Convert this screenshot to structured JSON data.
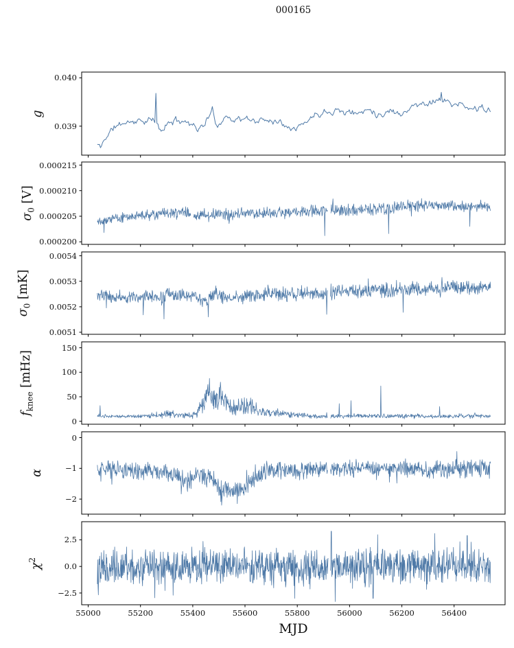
{
  "title": "000165",
  "xlabel": "MJD",
  "accent_color": "#4e79a7",
  "chart_data": {
    "type": "line",
    "title": "000165",
    "xlabel": "MJD",
    "legend": null,
    "grid": false,
    "xlim": [
      54975,
      56595
    ],
    "x_start": 55035,
    "x_end": 56540,
    "line_color": "#4e79a7",
    "xticks": [
      {
        "v": 55000,
        "label": "55000"
      },
      {
        "v": 55200,
        "label": "55200"
      },
      {
        "v": 55400,
        "label": "55400"
      },
      {
        "v": 55600,
        "label": "55600"
      },
      {
        "v": 55800,
        "label": "55800"
      },
      {
        "v": 56000,
        "label": "56000"
      },
      {
        "v": 56200,
        "label": "56200"
      },
      {
        "v": 56400,
        "label": "56400"
      }
    ],
    "panels": [
      {
        "name": "g",
        "ylabel_text": "g",
        "ylabel_segments": [
          {
            "t": "g",
            "i": true
          }
        ],
        "ylim": [
          0.0384,
          0.04012
        ],
        "yticks": [
          {
            "v": 0.039,
            "label": "0.039"
          },
          {
            "v": 0.04,
            "label": "0.040"
          }
        ],
        "style": {
          "step": 4,
          "noise": 5.5e-05,
          "smooth": 0.5,
          "lw": 1.0,
          "band": false
        },
        "keys": [
          [
            55035,
            0.03862
          ],
          [
            55048,
            0.03856
          ],
          [
            55070,
            0.0388
          ],
          [
            55100,
            0.03898
          ],
          [
            55140,
            0.03908
          ],
          [
            55200,
            0.03911
          ],
          [
            55250,
            0.03912
          ],
          [
            55280,
            0.0389
          ],
          [
            55310,
            0.03908
          ],
          [
            55355,
            0.03913
          ],
          [
            55395,
            0.03906
          ],
          [
            55425,
            0.03893
          ],
          [
            55450,
            0.03908
          ],
          [
            55475,
            0.03932
          ],
          [
            55495,
            0.03898
          ],
          [
            55520,
            0.0392
          ],
          [
            55555,
            0.03915
          ],
          [
            55600,
            0.03914
          ],
          [
            55650,
            0.03911
          ],
          [
            55700,
            0.03914
          ],
          [
            55745,
            0.03906
          ],
          [
            55790,
            0.03898
          ],
          [
            55825,
            0.03904
          ],
          [
            55860,
            0.03922
          ],
          [
            55900,
            0.0393
          ],
          [
            55945,
            0.03934
          ],
          [
            55990,
            0.03929
          ],
          [
            56035,
            0.03926
          ],
          [
            56075,
            0.03938
          ],
          [
            56115,
            0.03922
          ],
          [
            56155,
            0.03933
          ],
          [
            56195,
            0.03926
          ],
          [
            56245,
            0.03942
          ],
          [
            56295,
            0.03948
          ],
          [
            56345,
            0.03956
          ],
          [
            56385,
            0.03947
          ],
          [
            56425,
            0.03943
          ],
          [
            56465,
            0.03934
          ],
          [
            56505,
            0.0394
          ],
          [
            56540,
            0.03927
          ]
        ],
        "spikes": [
          [
            55258,
            0.03968
          ],
          [
            56352,
            0.0397
          ]
        ],
        "gaps": []
      },
      {
        "name": "sigma0-v",
        "ylabel_text": "sigma_0 [V]",
        "ylabel_segments": [
          {
            "t": "σ",
            "i": true
          },
          {
            "t": "0",
            "sub": true
          },
          {
            "t": " [V]"
          }
        ],
        "ylim": [
          0.0001995,
          0.0002156
        ],
        "yticks": [
          {
            "v": 0.0002,
            "label": "0.000200"
          },
          {
            "v": 0.000205,
            "label": "0.000205"
          },
          {
            "v": 0.00021,
            "label": "0.000210"
          },
          {
            "v": 0.000215,
            "label": "0.000215"
          }
        ],
        "style": {
          "step": 1.5,
          "lw": 0.8,
          "band": true
        },
        "keys": [
          [
            55035,
            0.0002042,
            9e-07
          ],
          [
            55100,
            0.0002046,
            1.1e-06
          ],
          [
            55200,
            0.0002051,
            1.2e-06
          ],
          [
            55300,
            0.0002055,
            1.3e-06
          ],
          [
            55391,
            0.0002058,
            1.3e-06
          ],
          [
            55402,
            0.0002049,
            1.3e-06
          ],
          [
            55500,
            0.0002053,
            1.3e-06
          ],
          [
            55600,
            0.0002055,
            1.3e-06
          ],
          [
            55700,
            0.0002056,
            1.3e-06
          ],
          [
            55800,
            0.0002058,
            1.3e-06
          ],
          [
            55910,
            0.0002061,
            1.4e-06
          ],
          [
            56000,
            0.0002062,
            1.4e-06
          ],
          [
            56100,
            0.0002064,
            1.4e-06
          ],
          [
            56200,
            0.0002068,
            1.4e-06
          ],
          [
            56290,
            0.0002073,
            1.4e-06
          ],
          [
            56360,
            0.0002071,
            1.3e-06
          ],
          [
            56450,
            0.0002069,
            1.3e-06
          ],
          [
            56540,
            0.0002069,
            1.2e-06
          ]
        ],
        "spikes": [
          [
            55060,
            0.0002018
          ],
          [
            55905,
            0.0002012
          ],
          [
            56150,
            0.0002016
          ],
          [
            56460,
            0.000203
          ]
        ],
        "gaps": [
          [
            55393,
            55401
          ],
          [
            55916,
            55926
          ]
        ]
      },
      {
        "name": "sigma0-mk",
        "ylabel_text": "sigma_0 [mK]",
        "ylabel_segments": [
          {
            "t": "σ",
            "i": true
          },
          {
            "t": "0",
            "sub": true
          },
          {
            "t": " [mK]"
          }
        ],
        "ylim": [
          0.005092,
          0.005415
        ],
        "yticks": [
          {
            "v": 0.0051,
            "label": "0.0051"
          },
          {
            "v": 0.0052,
            "label": "0.0052"
          },
          {
            "v": 0.0053,
            "label": "0.0053"
          },
          {
            "v": 0.0054,
            "label": "0.0054"
          }
        ],
        "style": {
          "step": 1.5,
          "lw": 0.8,
          "band": true
        },
        "keys": [
          [
            55035,
            0.005245,
            3e-05
          ],
          [
            55150,
            0.005235,
            3e-05
          ],
          [
            55250,
            0.00524,
            3e-05
          ],
          [
            55287,
            0.005228,
            3.6e-05
          ],
          [
            55302,
            0.005262,
            2.4e-05
          ],
          [
            55330,
            0.005246,
            3e-05
          ],
          [
            55420,
            0.00524,
            3e-05
          ],
          [
            55458,
            0.005218,
            3.6e-05
          ],
          [
            55482,
            0.005258,
            2.8e-05
          ],
          [
            55520,
            0.005232,
            3e-05
          ],
          [
            55600,
            0.005242,
            3.4e-05
          ],
          [
            55700,
            0.00525,
            3.4e-05
          ],
          [
            55800,
            0.005252,
            3.4e-05
          ],
          [
            55910,
            0.005256,
            3.4e-05
          ],
          [
            56000,
            0.00526,
            3.4e-05
          ],
          [
            56100,
            0.005266,
            3.4e-05
          ],
          [
            56155,
            0.00526,
            3.8e-05
          ],
          [
            56210,
            0.00527,
            3.4e-05
          ],
          [
            56300,
            0.005272,
            3.6e-05
          ],
          [
            56400,
            0.005276,
            3.4e-05
          ],
          [
            56470,
            0.00527,
            3.4e-05
          ],
          [
            56540,
            0.005278,
            3e-05
          ]
        ],
        "spikes": [
          [
            55210,
            0.005168
          ],
          [
            55290,
            0.005152
          ],
          [
            55460,
            0.00516
          ],
          [
            55912,
            0.00517
          ],
          [
            56205,
            0.005178
          ]
        ],
        "gaps": [
          [
            55916,
            55926
          ]
        ]
      },
      {
        "name": "fknee",
        "ylabel_text": "f_knee [mHz]",
        "ylabel_segments": [
          {
            "t": "f",
            "i": true
          },
          {
            "t": "knee",
            "sub": true
          },
          {
            "t": " [mHz]"
          }
        ],
        "ylim": [
          -6,
          162
        ],
        "yticks": [
          {
            "v": 0,
            "label": "0"
          },
          {
            "v": 50,
            "label": "50"
          },
          {
            "v": 100,
            "label": "100"
          },
          {
            "v": 150,
            "label": "150"
          }
        ],
        "style": {
          "step": 1.5,
          "lw": 0.8,
          "band": true,
          "clampMin": 3
        },
        "keys": [
          [
            55035,
            10,
            5
          ],
          [
            55100,
            10,
            4
          ],
          [
            55200,
            10,
            4
          ],
          [
            55290,
            14,
            8
          ],
          [
            55320,
            16,
            10
          ],
          [
            55350,
            12,
            6
          ],
          [
            55400,
            12,
            8
          ],
          [
            55430,
            25,
            18
          ],
          [
            55460,
            55,
            40
          ],
          [
            55480,
            55,
            42
          ],
          [
            55500,
            45,
            32
          ],
          [
            55530,
            35,
            25
          ],
          [
            55560,
            28,
            18
          ],
          [
            55600,
            30,
            24
          ],
          [
            55620,
            35,
            25
          ],
          [
            55650,
            20,
            12
          ],
          [
            55700,
            18,
            10
          ],
          [
            55750,
            16,
            9
          ],
          [
            55800,
            14,
            8
          ],
          [
            55850,
            10,
            5
          ],
          [
            55900,
            10,
            5
          ],
          [
            56000,
            11,
            5
          ],
          [
            56100,
            11,
            5
          ],
          [
            56200,
            11,
            5
          ],
          [
            56300,
            10,
            4
          ],
          [
            56400,
            10,
            5
          ],
          [
            56470,
            11,
            6
          ],
          [
            56540,
            10,
            4
          ]
        ],
        "spikes": [
          [
            55045,
            32
          ],
          [
            55960,
            36
          ],
          [
            56005,
            42
          ],
          [
            56120,
            72
          ],
          [
            56345,
            30
          ]
        ],
        "gaps": [
          [
            55916,
            55926
          ]
        ]
      },
      {
        "name": "alpha",
        "ylabel_text": "alpha",
        "ylabel_segments": [
          {
            "t": "α",
            "i": true
          }
        ],
        "ylim": [
          -2.49,
          0.19
        ],
        "yticks": [
          {
            "v": -2,
            "label": "−2"
          },
          {
            "v": -1,
            "label": "−1"
          },
          {
            "v": 0,
            "label": "0"
          }
        ],
        "style": {
          "step": 1.5,
          "lw": 0.8,
          "band": true
        },
        "keys": [
          [
            55035,
            -1.0,
            0.34
          ],
          [
            55150,
            -1.05,
            0.34
          ],
          [
            55250,
            -1.1,
            0.34
          ],
          [
            55330,
            -1.2,
            0.36
          ],
          [
            55380,
            -1.45,
            0.36
          ],
          [
            55420,
            -1.1,
            0.3
          ],
          [
            55445,
            -1.35,
            0.36
          ],
          [
            55470,
            -1.25,
            0.36
          ],
          [
            55500,
            -1.65,
            0.3
          ],
          [
            55550,
            -1.7,
            0.3
          ],
          [
            55600,
            -1.65,
            0.36
          ],
          [
            55630,
            -1.3,
            0.42
          ],
          [
            55660,
            -1.15,
            0.42
          ],
          [
            55700,
            -1.05,
            0.34
          ],
          [
            55800,
            -1.1,
            0.34
          ],
          [
            55910,
            -1.0,
            0.3
          ],
          [
            56000,
            -1.0,
            0.34
          ],
          [
            56100,
            -1.05,
            0.34
          ],
          [
            56200,
            -1.0,
            0.34
          ],
          [
            56300,
            -1.05,
            0.34
          ],
          [
            56400,
            -1.0,
            0.34
          ],
          [
            56540,
            -1.0,
            0.34
          ]
        ],
        "spikes": [
          [
            55510,
            -2.2
          ],
          [
            55570,
            -2.15
          ],
          [
            56410,
            -0.45
          ]
        ],
        "gaps": [
          [
            55916,
            55926
          ]
        ]
      },
      {
        "name": "chi2",
        "ylabel_text": "chi^2",
        "ylabel_segments": [
          {
            "t": "χ",
            "i": true
          },
          {
            "t": "2",
            "sup": true
          }
        ],
        "ylim": [
          -3.6,
          4.2
        ],
        "yticks": [
          {
            "v": -2.5,
            "label": "−2.5"
          },
          {
            "v": 0.0,
            "label": "0.0"
          },
          {
            "v": 2.5,
            "label": "2.5"
          }
        ],
        "style": {
          "step": 1.3,
          "lw": 0.8,
          "band": true
        },
        "keys": [
          [
            55035,
            0,
            1.95
          ],
          [
            55500,
            0,
            1.9
          ],
          [
            55900,
            0,
            2.0
          ],
          [
            56200,
            0,
            1.95
          ],
          [
            56540,
            0,
            1.95
          ]
        ],
        "spikes": [
          [
            55255,
            -2.95
          ],
          [
            55790,
            -3.0
          ],
          [
            55930,
            3.3
          ],
          [
            55945,
            -3.3
          ],
          [
            56090,
            -3.0
          ],
          [
            56450,
            2.9
          ]
        ],
        "gaps": [
          [
            55918,
            55926
          ]
        ]
      }
    ]
  }
}
